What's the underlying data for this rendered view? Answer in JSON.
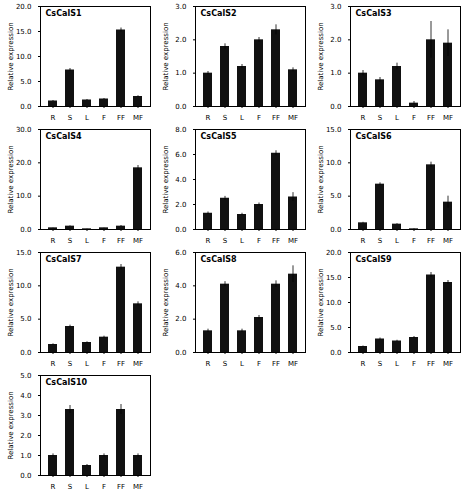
{
  "chart_data": [
    {
      "type": "bar",
      "title": "CsCalS1",
      "categories": [
        "R",
        "S",
        "L",
        "F",
        "FF",
        "MF"
      ],
      "values": [
        1.1,
        7.3,
        1.3,
        1.5,
        15.3,
        2.0
      ],
      "errors": [
        0.1,
        0.3,
        0.1,
        0.1,
        0.4,
        0.15
      ],
      "ylabel": "Relative expression",
      "color": "#111111",
      "ylim": [
        0,
        20.0
      ],
      "yticks": [
        {
          "value": 0.0,
          "label": "0.0"
        },
        {
          "value": 5.0,
          "label": "5.0"
        },
        {
          "value": 10.0,
          "label": "10.0"
        },
        {
          "value": 15.0,
          "label": "15.0"
        },
        {
          "value": 20.0,
          "label": "20.0"
        }
      ],
      "grid": false
    },
    {
      "type": "bar",
      "title": "CsCalS2",
      "categories": [
        "R",
        "S",
        "L",
        "F",
        "FF",
        "MF"
      ],
      "values": [
        1.0,
        1.8,
        1.2,
        2.0,
        2.3,
        1.1
      ],
      "errors": [
        0.05,
        0.08,
        0.06,
        0.07,
        0.15,
        0.06
      ],
      "ylabel": "Relative expression",
      "color": "#111111",
      "ylim": [
        0,
        3.0
      ],
      "yticks": [
        {
          "value": 0.0,
          "label": "0.0"
        },
        {
          "value": 1.0,
          "label": "1.0"
        },
        {
          "value": 2.0,
          "label": "2.0"
        },
        {
          "value": 3.0,
          "label": "3.0"
        }
      ],
      "grid": false
    },
    {
      "type": "bar",
      "title": "CsCalS3",
      "categories": [
        "R",
        "S",
        "L",
        "F",
        "FF",
        "MF"
      ],
      "values": [
        1.0,
        0.8,
        1.2,
        0.1,
        2.0,
        1.9
      ],
      "errors": [
        0.08,
        0.07,
        0.1,
        0.05,
        0.55,
        0.4
      ],
      "ylabel": "Relative expression",
      "color": "#111111",
      "ylim": [
        0,
        3.0
      ],
      "yticks": [
        {
          "value": 0.0,
          "label": "0.0"
        },
        {
          "value": 1.0,
          "label": "1.0"
        },
        {
          "value": 2.0,
          "label": "2.0"
        },
        {
          "value": 3.0,
          "label": "3.0"
        }
      ],
      "grid": false
    },
    {
      "type": "bar",
      "title": "CsCalS4",
      "categories": [
        "R",
        "S",
        "L",
        "F",
        "FF",
        "MF"
      ],
      "values": [
        0.5,
        1.0,
        0.2,
        0.5,
        1.0,
        18.5
      ],
      "errors": [
        0.05,
        0.1,
        0.05,
        0.05,
        0.2,
        0.7
      ],
      "ylabel": "Relative expression",
      "color": "#111111",
      "ylim": [
        0,
        30.0
      ],
      "yticks": [
        {
          "value": 0.0,
          "label": "0.0"
        },
        {
          "value": 10.0,
          "label": "10.0"
        },
        {
          "value": 20.0,
          "label": "20.0"
        },
        {
          "value": 30.0,
          "label": "30.0"
        }
      ],
      "grid": false
    },
    {
      "type": "bar",
      "title": "CsCalS5",
      "categories": [
        "R",
        "S",
        "L",
        "F",
        "FF",
        "MF"
      ],
      "values": [
        1.3,
        2.5,
        1.2,
        2.0,
        6.1,
        2.6
      ],
      "errors": [
        0.1,
        0.15,
        0.1,
        0.12,
        0.2,
        0.35
      ],
      "ylabel": "Relative expression",
      "color": "#111111",
      "ylim": [
        0,
        8.0
      ],
      "yticks": [
        {
          "value": 0.0,
          "label": "0.0"
        },
        {
          "value": 2.0,
          "label": "2.0"
        },
        {
          "value": 4.0,
          "label": "4.0"
        },
        {
          "value": 6.0,
          "label": "6.0"
        },
        {
          "value": 8.0,
          "label": "8.0"
        }
      ],
      "grid": false
    },
    {
      "type": "bar",
      "title": "CsCalS6",
      "categories": [
        "R",
        "S",
        "L",
        "F",
        "FF",
        "MF"
      ],
      "values": [
        1.0,
        6.8,
        0.8,
        0.1,
        9.7,
        4.1
      ],
      "errors": [
        0.08,
        0.2,
        0.07,
        0.05,
        0.4,
        0.9
      ],
      "ylabel": "Relative expression",
      "color": "#111111",
      "ylim": [
        0,
        15.0
      ],
      "yticks": [
        {
          "value": 0.0,
          "label": "0.0"
        },
        {
          "value": 5.0,
          "label": "5.0"
        },
        {
          "value": 10.0,
          "label": "10.0"
        },
        {
          "value": 15.0,
          "label": "15.0"
        }
      ],
      "grid": false
    },
    {
      "type": "bar",
      "title": "CsCalS7",
      "categories": [
        "R",
        "S",
        "L",
        "F",
        "FF",
        "MF"
      ],
      "values": [
        1.2,
        3.9,
        1.5,
        2.3,
        12.8,
        7.3
      ],
      "errors": [
        0.1,
        0.2,
        0.1,
        0.15,
        0.4,
        0.3
      ],
      "ylabel": "Relative expression",
      "color": "#111111",
      "ylim": [
        0,
        15.0
      ],
      "yticks": [
        {
          "value": 0.0,
          "label": "0.0"
        },
        {
          "value": 5.0,
          "label": "5.0"
        },
        {
          "value": 10.0,
          "label": "10.0"
        },
        {
          "value": 15.0,
          "label": "15.0"
        }
      ],
      "grid": false
    },
    {
      "type": "bar",
      "title": "CsCalS8",
      "categories": [
        "R",
        "S",
        "L",
        "F",
        "FF",
        "MF"
      ],
      "values": [
        1.3,
        4.1,
        1.3,
        2.1,
        4.1,
        4.7
      ],
      "errors": [
        0.1,
        0.15,
        0.1,
        0.12,
        0.2,
        0.5
      ],
      "ylabel": "Relative expression",
      "color": "#111111",
      "ylim": [
        0,
        6.0
      ],
      "yticks": [
        {
          "value": 0.0,
          "label": "0.0"
        },
        {
          "value": 2.0,
          "label": "2.0"
        },
        {
          "value": 4.0,
          "label": "4.0"
        },
        {
          "value": 6.0,
          "label": "6.0"
        }
      ],
      "grid": false
    },
    {
      "type": "bar",
      "title": "CsCalS9",
      "categories": [
        "R",
        "S",
        "L",
        "F",
        "FF",
        "MF"
      ],
      "values": [
        1.2,
        2.7,
        2.3,
        3.0,
        15.5,
        14.0
      ],
      "errors": [
        0.1,
        0.2,
        0.15,
        0.2,
        0.5,
        0.4
      ],
      "ylabel": "Relative expression",
      "color": "#111111",
      "ylim": [
        0,
        20.0
      ],
      "yticks": [
        {
          "value": 0.0,
          "label": "0.0"
        },
        {
          "value": 5.0,
          "label": "5.0"
        },
        {
          "value": 10.0,
          "label": "10.0"
        },
        {
          "value": 15.0,
          "label": "15.0"
        },
        {
          "value": 20.0,
          "label": "20.0"
        }
      ],
      "grid": false
    },
    {
      "type": "bar",
      "title": "CsCalS10",
      "categories": [
        "R",
        "S",
        "L",
        "F",
        "FF",
        "MF"
      ],
      "values": [
        1.0,
        3.3,
        0.5,
        1.0,
        3.3,
        1.0
      ],
      "errors": [
        0.08,
        0.2,
        0.05,
        0.08,
        0.25,
        0.08
      ],
      "ylabel": "Relative expression",
      "color": "#111111",
      "ylim": [
        0,
        5.0
      ],
      "yticks": [
        {
          "value": 0.0,
          "label": "0.0"
        },
        {
          "value": 1.0,
          "label": "1.0"
        },
        {
          "value": 2.0,
          "label": "2.0"
        },
        {
          "value": 3.0,
          "label": "3.0"
        },
        {
          "value": 4.0,
          "label": "4.0"
        },
        {
          "value": 5.0,
          "label": "5.0"
        }
      ],
      "grid": false
    }
  ]
}
